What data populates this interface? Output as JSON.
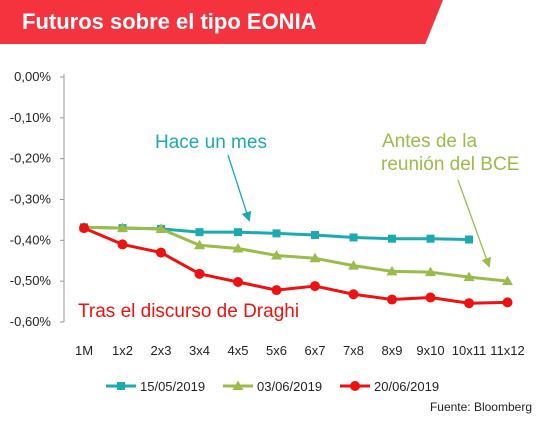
{
  "header": {
    "title": "Futuros sobre el tipo EONIA"
  },
  "source": "Fuente: Bloomberg",
  "chart_data": {
    "type": "line",
    "title": "Futuros sobre el tipo EONIA",
    "categories": [
      "1M",
      "1x2",
      "2x3",
      "3x4",
      "4x5",
      "5x6",
      "6x7",
      "7x8",
      "8x9",
      "9x10",
      "10x11",
      "11x12"
    ],
    "ylim": [
      -0.6,
      0.0
    ],
    "yticks": [
      "0,00%",
      "-0,10%",
      "-0,20%",
      "-0,30%",
      "-0,40%",
      "-0,50%",
      "-0,60%"
    ],
    "series": [
      {
        "name": "15/05/2019",
        "color": "#1aaab0",
        "marker": "square",
        "values": [
          -0.368,
          -0.37,
          -0.372,
          -0.38,
          -0.38,
          -0.383,
          -0.387,
          -0.393,
          -0.396,
          -0.396,
          -0.398,
          null
        ]
      },
      {
        "name": "03/06/2019",
        "color": "#9bbb4a",
        "marker": "triangle",
        "values": [
          -0.368,
          -0.37,
          -0.372,
          -0.412,
          -0.42,
          -0.437,
          -0.444,
          -0.462,
          -0.476,
          -0.478,
          -0.49,
          -0.5
        ]
      },
      {
        "name": "20/06/2019",
        "color": "#ee1111",
        "marker": "circle",
        "values": [
          -0.37,
          -0.41,
          -0.43,
          -0.482,
          -0.502,
          -0.522,
          -0.512,
          -0.532,
          -0.545,
          -0.54,
          -0.554,
          -0.552
        ]
      }
    ],
    "annotations": [
      {
        "text": "Hace un mes",
        "color": "#1aaab0"
      },
      {
        "text": "Antes de la",
        "color": "#9bbb4a"
      },
      {
        "text": "reunión del BCE",
        "color": "#9bbb4a"
      },
      {
        "text": "Tras el discurso de Draghi",
        "color": "#ee1111"
      }
    ],
    "legend_position": "bottom",
    "grid": false
  }
}
